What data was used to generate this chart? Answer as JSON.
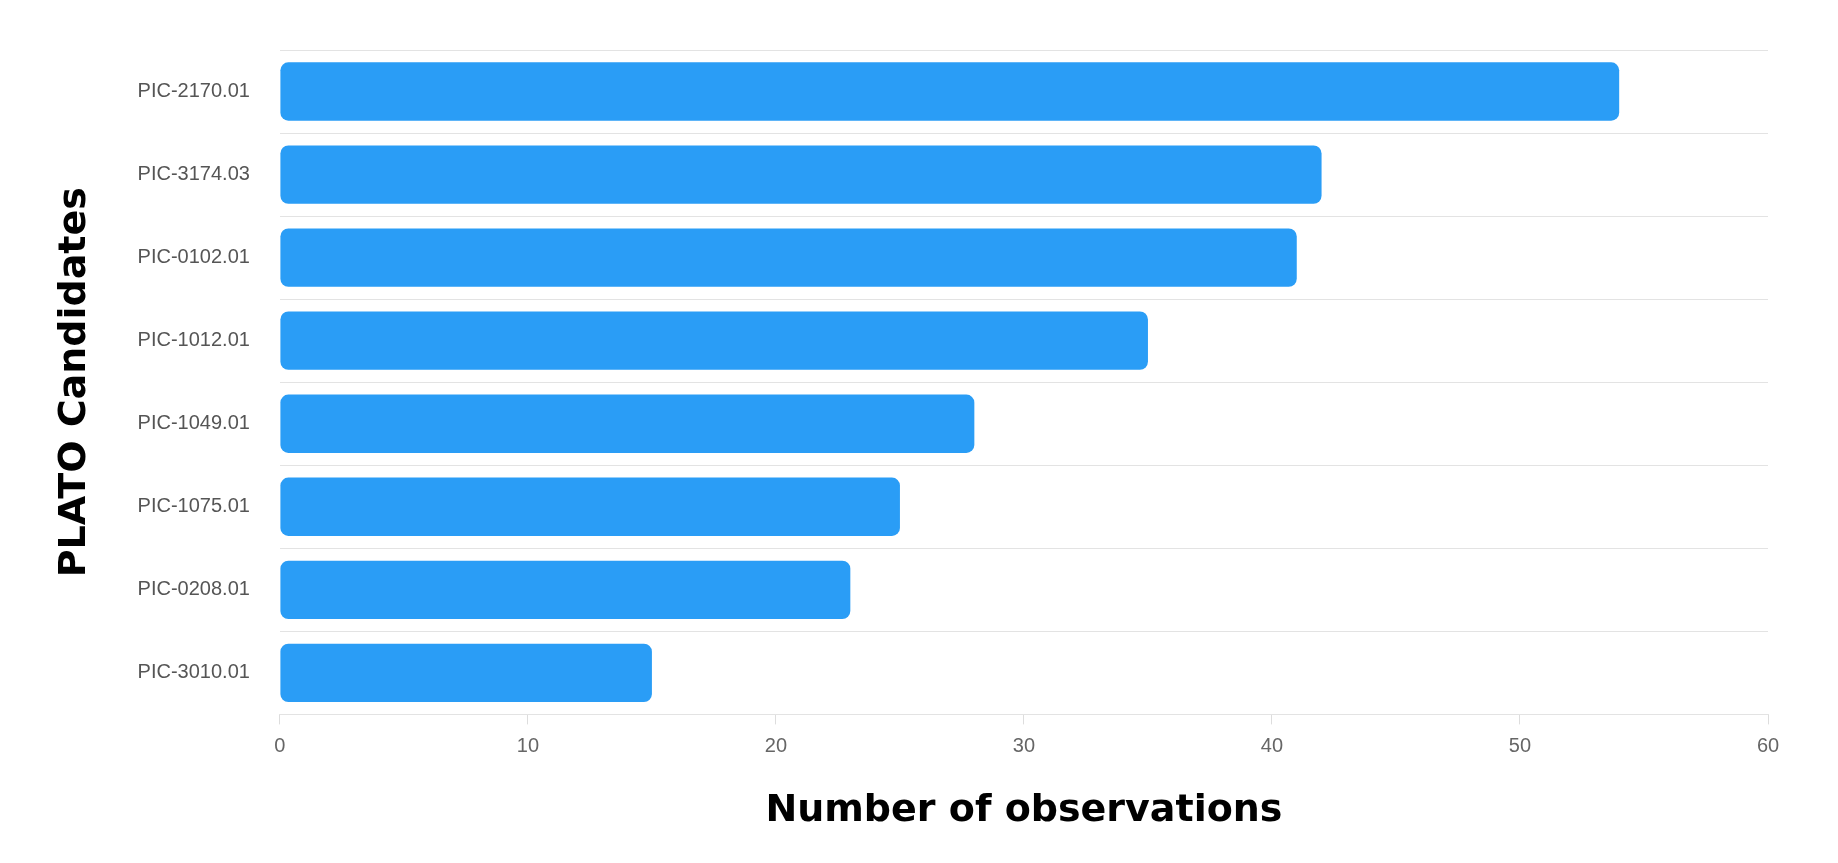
{
  "chart_data": {
    "type": "bar",
    "orientation": "horizontal",
    "xlabel": "Number of observations",
    "ylabel": "PLATO Candidates",
    "categories": [
      "PIC-2170.01",
      "PIC-3174.03",
      "PIC-0102.01",
      "PIC-1012.01",
      "PIC-1049.01",
      "PIC-1075.01",
      "PIC-0208.01",
      "PIC-3010.01"
    ],
    "values": [
      54,
      42,
      41,
      35,
      28,
      25,
      23,
      15
    ],
    "color": "#2a9df6",
    "xlim": [
      0,
      60
    ],
    "xticks": [
      0,
      10,
      20,
      30,
      40,
      50,
      60
    ],
    "grid": "y",
    "legend": false
  }
}
